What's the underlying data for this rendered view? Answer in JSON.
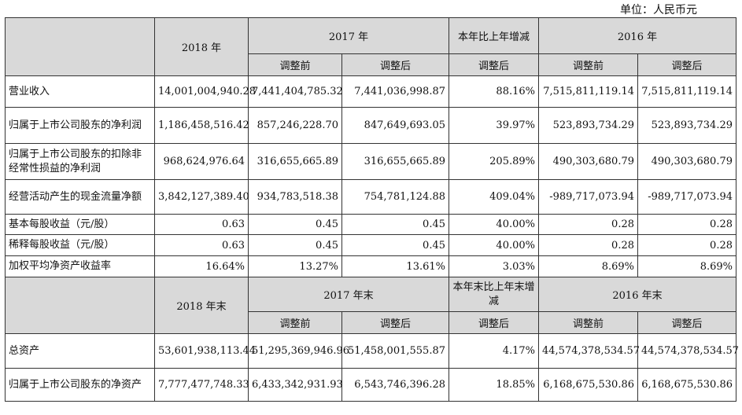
{
  "unit_note": "单位：人民币元",
  "header1": {
    "y2018": "2018 年",
    "y2017": "2017 年",
    "change": "本年比上年增减",
    "y2016": "2016 年",
    "before": "调整前",
    "after": "调整后",
    "change_after": "调整后"
  },
  "rows1": [
    {
      "label": "营业收入",
      "v2018": "14,001,004,940.28",
      "v2017_before": "7,441,404,785.32",
      "v2017_after": "7,441,036,998.87",
      "change": "88.16%",
      "v2016_before": "7,515,811,119.14",
      "v2016_after": "7,515,811,119.14"
    },
    {
      "label": "归属于上市公司股东的净利润",
      "v2018": "1,186,458,516.42",
      "v2017_before": "857,246,228.70",
      "v2017_after": "847,649,693.05",
      "change": "39.97%",
      "v2016_before": "523,893,734.29",
      "v2016_after": "523,893,734.29"
    },
    {
      "label": "归属于上市公司股东的扣除非经常性损益的净利润",
      "v2018": "968,624,976.64",
      "v2017_before": "316,655,665.89",
      "v2017_after": "316,655,665.89",
      "change": "205.89%",
      "v2016_before": "490,303,680.79",
      "v2016_after": "490,303,680.79"
    },
    {
      "label": "经营活动产生的现金流量净额",
      "v2018": "3,842,127,389.40",
      "v2017_before": "934,783,518.38",
      "v2017_after": "754,781,124.88",
      "change": "409.04%",
      "v2016_before": "-989,717,073.94",
      "v2016_after": "-989,717,073.94"
    },
    {
      "label": "基本每股收益（元/股）",
      "v2018": "0.63",
      "v2017_before": "0.45",
      "v2017_after": "0.45",
      "change": "40.00%",
      "v2016_before": "0.28",
      "v2016_after": "0.28"
    },
    {
      "label": "稀释每股收益（元/股）",
      "v2018": "0.63",
      "v2017_before": "0.45",
      "v2017_after": "0.45",
      "change": "40.00%",
      "v2016_before": "0.28",
      "v2016_after": "0.28"
    },
    {
      "label": "加权平均净资产收益率",
      "v2018": "16.64%",
      "v2017_before": "13.27%",
      "v2017_after": "13.61%",
      "change": "3.03%",
      "v2016_before": "8.69%",
      "v2016_after": "8.69%"
    }
  ],
  "header2": {
    "y2018": "2018 年末",
    "y2017": "2017 年末",
    "change": "本年末比上年末增减",
    "y2016": "2016 年末",
    "before": "调整前",
    "after": "调整后",
    "change_after": "调整后"
  },
  "rows2": [
    {
      "label": "总资产",
      "v2018": "53,601,938,113.44",
      "v2017_before": "51,295,369,946.96",
      "v2017_after": "51,458,001,555.87",
      "change": "4.17%",
      "v2016_before": "44,574,378,534.57",
      "v2016_after": "44,574,378,534.57"
    },
    {
      "label": "归属于上市公司股东的净资产",
      "v2018": "7,777,477,748.33",
      "v2017_before": "6,433,342,931.93",
      "v2017_after": "6,543,746,396.28",
      "change": "18.85%",
      "v2016_before": "6,168,675,530.86",
      "v2016_after": "6,168,675,530.86"
    }
  ]
}
